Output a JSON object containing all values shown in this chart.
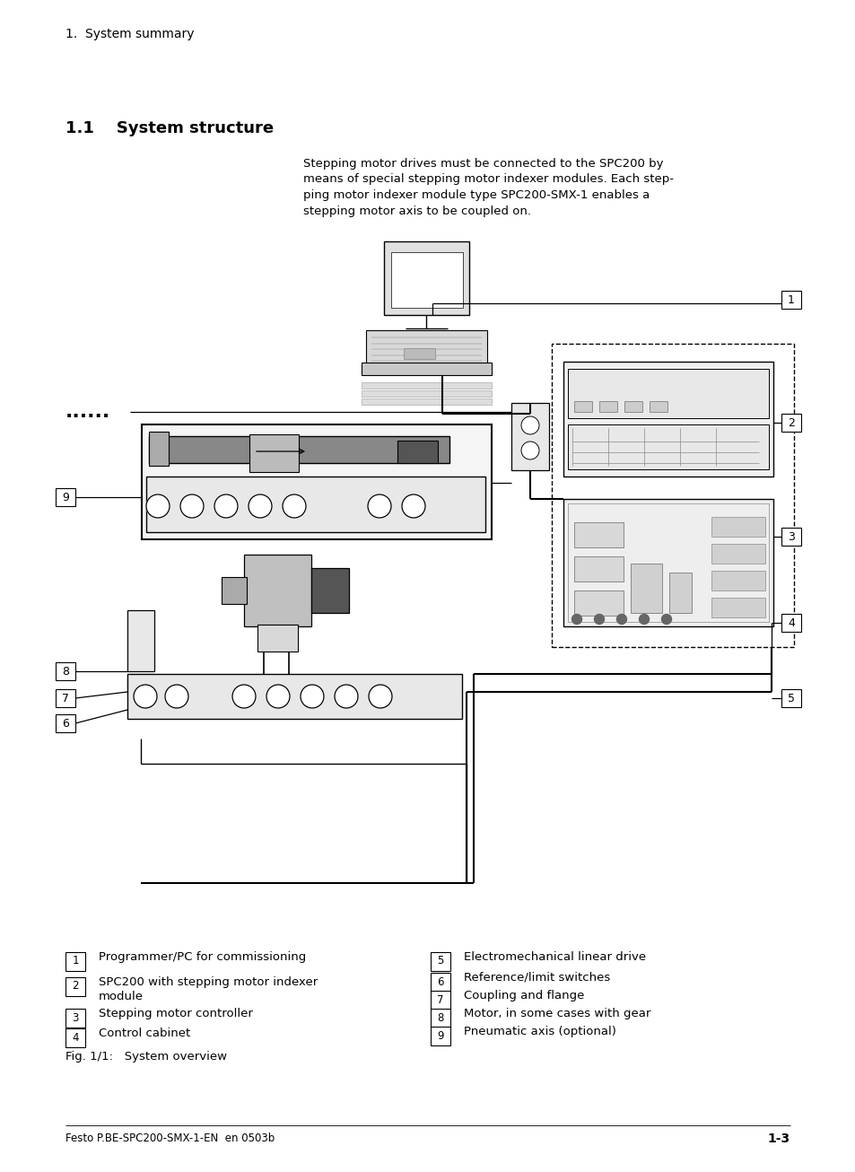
{
  "bg_color": "#ffffff",
  "page_width": 9.54,
  "page_height": 13.06,
  "header_text": "1.  System summary",
  "section_title": "1.1    System structure",
  "body_text": "Stepping motor drives must be connected to the SPC200 by\nmeans of special stepping motor indexer modules. Each step-\nping motor indexer module type SPC200-SMX-1 enables a\nstepping motor axis to be coupled on.",
  "fig_caption": "Fig. 1/1:   System overview",
  "footer_left": "Festo P.BE-SPC200-SMX-1-EN  en 0503b",
  "footer_right": "1-3",
  "legend_col1": [
    [
      "1",
      "Programmer/PC for commissioning"
    ],
    [
      "2",
      "SPC200 with stepping motor indexer\nmodule"
    ],
    [
      "3",
      "Stepping motor controller"
    ],
    [
      "4",
      "Control cabinet"
    ]
  ],
  "legend_col2": [
    [
      "5",
      "Electromechanical linear drive"
    ],
    [
      "6",
      "Reference/limit switches"
    ],
    [
      "7",
      "Coupling and flange"
    ],
    [
      "8",
      "Motor, in some cases with gear"
    ],
    [
      "9",
      "Pneumatic axis (optional)"
    ]
  ]
}
